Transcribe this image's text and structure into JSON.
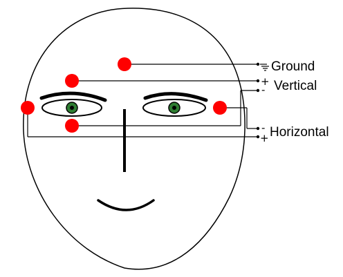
{
  "labels": {
    "ground": "Ground",
    "vertical": "Vertical",
    "horizontal": "Horizontal"
  },
  "signs": {
    "vertical_plus": "+",
    "vertical_minus": "-",
    "horizontal_minus": "-",
    "horizontal_plus": "+"
  },
  "colors": {
    "electrode": "#ff0000",
    "iris": "#2e7d32",
    "line": "#000000"
  },
  "icons": {
    "ground": "ground-symbol-icon"
  }
}
